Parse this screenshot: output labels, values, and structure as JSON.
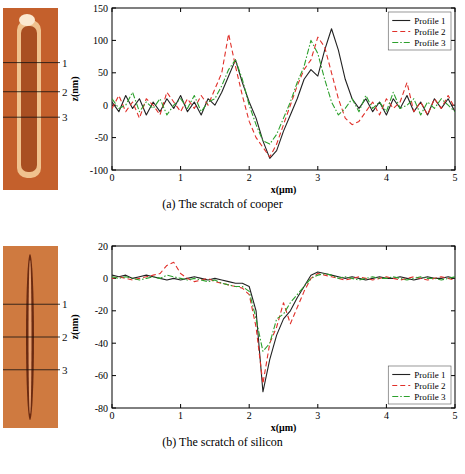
{
  "chart_data": [
    {
      "type": "line",
      "title": "(a) The scratch of cooper",
      "xlabel": "x(μm)",
      "ylabel": "z(nm)",
      "annotations": [
        "1",
        "2",
        "3"
      ],
      "x": [
        0,
        0.1,
        0.2,
        0.3,
        0.4,
        0.5,
        0.6,
        0.7,
        0.8,
        0.9,
        1,
        1.1,
        1.2,
        1.3,
        1.4,
        1.5,
        1.6,
        1.7,
        1.8,
        1.9,
        2,
        2.1,
        2.2,
        2.3,
        2.4,
        2.5,
        2.6,
        2.7,
        2.8,
        2.9,
        3,
        3.1,
        3.2,
        3.3,
        3.4,
        3.5,
        3.6,
        3.7,
        3.8,
        3.9,
        4,
        4.1,
        4.2,
        4.3,
        4.4,
        4.5,
        4.6,
        4.7,
        4.8,
        4.9,
        5
      ],
      "series": [
        {
          "name": "Profile 1",
          "color": "#222222",
          "line_style": "solid",
          "values": [
            5,
            -10,
            15,
            -5,
            10,
            -15,
            5,
            -10,
            10,
            -5,
            15,
            -10,
            5,
            -15,
            10,
            0,
            20,
            45,
            70,
            35,
            5,
            -20,
            -55,
            -82,
            -70,
            -40,
            -15,
            10,
            40,
            55,
            45,
            85,
            118,
            85,
            40,
            10,
            -5,
            10,
            -10,
            5,
            -15,
            10,
            -5,
            15,
            -10,
            5,
            -15,
            10,
            -5,
            10,
            -10
          ]
        },
        {
          "name": "Profile 2",
          "color": "#e0302a",
          "line_style": "dashed",
          "values": [
            -5,
            15,
            -10,
            5,
            -20,
            10,
            0,
            -15,
            20,
            5,
            -10,
            10,
            -5,
            15,
            0,
            25,
            50,
            110,
            60,
            15,
            -25,
            -50,
            -65,
            -80,
            -60,
            -30,
            0,
            30,
            55,
            70,
            105,
            90,
            50,
            10,
            -20,
            -30,
            -25,
            -10,
            5,
            -15,
            10,
            -5,
            5,
            35,
            -10,
            5,
            -15,
            10,
            -5,
            15,
            -5
          ]
        },
        {
          "name": "Profile 3",
          "color": "#2ca02c",
          "line_style": "dashdot",
          "values": [
            10,
            -5,
            0,
            20,
            -10,
            5,
            -5,
            10,
            -15,
            0,
            10,
            -5,
            15,
            -10,
            5,
            10,
            30,
            55,
            70,
            40,
            0,
            -30,
            -55,
            -60,
            -45,
            -20,
            5,
            35,
            60,
            100,
            80,
            40,
            5,
            -15,
            -5,
            10,
            -10,
            15,
            -5,
            5,
            -10,
            20,
            -5,
            0,
            10,
            -15,
            5,
            -5,
            10,
            0,
            -10
          ]
        }
      ],
      "xlim": [
        0,
        5
      ],
      "xticks": [
        0,
        1,
        2,
        3,
        4,
        5
      ],
      "ylim": [
        -100,
        150
      ],
      "yticks": [
        -100,
        -50,
        0,
        50,
        100,
        150
      ],
      "legend": "upper right"
    },
    {
      "type": "line",
      "title": "(b) The scratch of silicon",
      "xlabel": "x(μm)",
      "ylabel": "z(nm)",
      "annotations": [
        "1",
        "2",
        "3"
      ],
      "x": [
        0,
        0.1,
        0.2,
        0.3,
        0.4,
        0.5,
        0.6,
        0.7,
        0.8,
        0.9,
        1,
        1.1,
        1.2,
        1.3,
        1.4,
        1.5,
        1.6,
        1.7,
        1.8,
        1.9,
        2,
        2.1,
        2.2,
        2.3,
        2.4,
        2.5,
        2.6,
        2.7,
        2.8,
        2.9,
        3,
        3.1,
        3.2,
        3.3,
        3.4,
        3.5,
        3.6,
        3.7,
        3.8,
        3.9,
        4,
        4.1,
        4.2,
        4.3,
        4.4,
        4.5,
        4.6,
        4.7,
        4.8,
        4.9,
        5
      ],
      "series": [
        {
          "name": "Profile 1",
          "color": "#222222",
          "line_style": "solid",
          "values": [
            2,
            1,
            2,
            0,
            1,
            2,
            1,
            0,
            -1,
            0,
            -1,
            0,
            1,
            0,
            -1,
            0,
            -1,
            -2,
            -3,
            -3,
            -5,
            -20,
            -70,
            -50,
            -35,
            -25,
            -20,
            -12,
            -5,
            2,
            4,
            3,
            2,
            1,
            0,
            1,
            0,
            -1,
            0,
            1,
            0,
            0,
            1,
            0,
            -1,
            0,
            1,
            0,
            0,
            1,
            0
          ]
        },
        {
          "name": "Profile 2",
          "color": "#e0302a",
          "line_style": "dashed",
          "values": [
            0,
            1,
            0,
            -1,
            0,
            1,
            2,
            3,
            8,
            10,
            3,
            0,
            -2,
            -1,
            0,
            -2,
            -3,
            -4,
            -5,
            -6,
            -10,
            -30,
            -65,
            -40,
            -30,
            -15,
            -28,
            -18,
            -8,
            0,
            3,
            2,
            1,
            0,
            -1,
            0,
            1,
            0,
            -1,
            0,
            1,
            0,
            -1,
            0,
            1,
            0,
            -1,
            0,
            1,
            0,
            -1
          ]
        },
        {
          "name": "Profile 3",
          "color": "#2ca02c",
          "line_style": "dashdot",
          "values": [
            1,
            0,
            1,
            0,
            -1,
            0,
            1,
            0,
            2,
            1,
            0,
            -1,
            0,
            -1,
            -2,
            -1,
            -3,
            -4,
            -5,
            -5,
            -8,
            -25,
            -45,
            -40,
            -25,
            -22,
            -15,
            -10,
            -5,
            0,
            2,
            3,
            2,
            0,
            1,
            0,
            -1,
            0,
            1,
            0,
            0,
            1,
            0,
            -1,
            0,
            1,
            0,
            0,
            -1,
            0,
            1
          ]
        }
      ],
      "xlim": [
        0,
        5
      ],
      "xticks": [
        0,
        1,
        2,
        3,
        4,
        5
      ],
      "ylim": [
        -80,
        20
      ],
      "yticks": [
        -80,
        -60,
        -40,
        -20,
        0,
        20
      ],
      "legend": "lower right"
    }
  ]
}
